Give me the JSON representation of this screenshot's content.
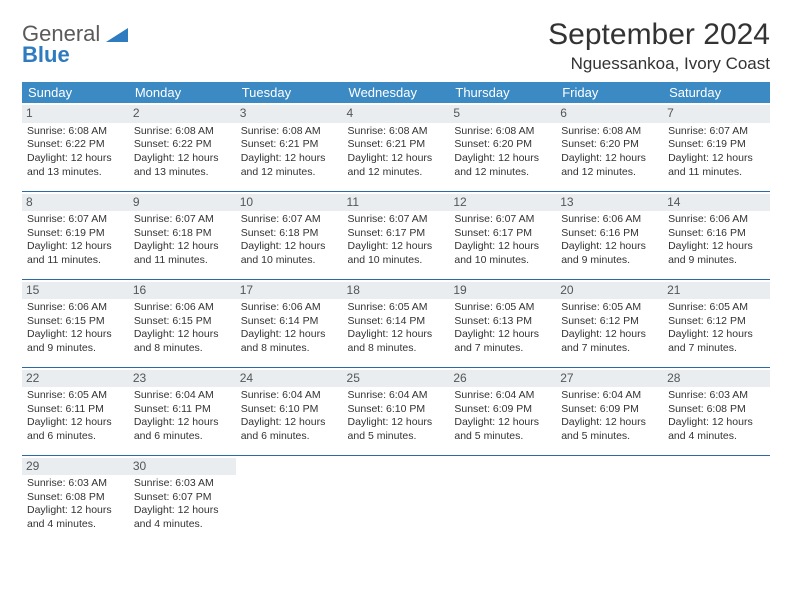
{
  "brand": {
    "line1": "General",
    "line2": "Blue"
  },
  "title": "September 2024",
  "location": "Nguessankoa, Ivory Coast",
  "day_headers": [
    "Sunday",
    "Monday",
    "Tuesday",
    "Wednesday",
    "Thursday",
    "Friday",
    "Saturday"
  ],
  "colors": {
    "header_bg": "#3b8ac4",
    "header_text": "#ffffff",
    "daynum_bg": "#e9edf0",
    "row_border": "#2d6aa3",
    "brand_gray": "#5a5a5a",
    "brand_blue": "#2f7bbf"
  },
  "weeks": [
    [
      {
        "n": "1",
        "sr": "Sunrise: 6:08 AM",
        "ss": "Sunset: 6:22 PM",
        "dl": "Daylight: 12 hours and 13 minutes."
      },
      {
        "n": "2",
        "sr": "Sunrise: 6:08 AM",
        "ss": "Sunset: 6:22 PM",
        "dl": "Daylight: 12 hours and 13 minutes."
      },
      {
        "n": "3",
        "sr": "Sunrise: 6:08 AM",
        "ss": "Sunset: 6:21 PM",
        "dl": "Daylight: 12 hours and 12 minutes."
      },
      {
        "n": "4",
        "sr": "Sunrise: 6:08 AM",
        "ss": "Sunset: 6:21 PM",
        "dl": "Daylight: 12 hours and 12 minutes."
      },
      {
        "n": "5",
        "sr": "Sunrise: 6:08 AM",
        "ss": "Sunset: 6:20 PM",
        "dl": "Daylight: 12 hours and 12 minutes."
      },
      {
        "n": "6",
        "sr": "Sunrise: 6:08 AM",
        "ss": "Sunset: 6:20 PM",
        "dl": "Daylight: 12 hours and 12 minutes."
      },
      {
        "n": "7",
        "sr": "Sunrise: 6:07 AM",
        "ss": "Sunset: 6:19 PM",
        "dl": "Daylight: 12 hours and 11 minutes."
      }
    ],
    [
      {
        "n": "8",
        "sr": "Sunrise: 6:07 AM",
        "ss": "Sunset: 6:19 PM",
        "dl": "Daylight: 12 hours and 11 minutes."
      },
      {
        "n": "9",
        "sr": "Sunrise: 6:07 AM",
        "ss": "Sunset: 6:18 PM",
        "dl": "Daylight: 12 hours and 11 minutes."
      },
      {
        "n": "10",
        "sr": "Sunrise: 6:07 AM",
        "ss": "Sunset: 6:18 PM",
        "dl": "Daylight: 12 hours and 10 minutes."
      },
      {
        "n": "11",
        "sr": "Sunrise: 6:07 AM",
        "ss": "Sunset: 6:17 PM",
        "dl": "Daylight: 12 hours and 10 minutes."
      },
      {
        "n": "12",
        "sr": "Sunrise: 6:07 AM",
        "ss": "Sunset: 6:17 PM",
        "dl": "Daylight: 12 hours and 10 minutes."
      },
      {
        "n": "13",
        "sr": "Sunrise: 6:06 AM",
        "ss": "Sunset: 6:16 PM",
        "dl": "Daylight: 12 hours and 9 minutes."
      },
      {
        "n": "14",
        "sr": "Sunrise: 6:06 AM",
        "ss": "Sunset: 6:16 PM",
        "dl": "Daylight: 12 hours and 9 minutes."
      }
    ],
    [
      {
        "n": "15",
        "sr": "Sunrise: 6:06 AM",
        "ss": "Sunset: 6:15 PM",
        "dl": "Daylight: 12 hours and 9 minutes."
      },
      {
        "n": "16",
        "sr": "Sunrise: 6:06 AM",
        "ss": "Sunset: 6:15 PM",
        "dl": "Daylight: 12 hours and 8 minutes."
      },
      {
        "n": "17",
        "sr": "Sunrise: 6:06 AM",
        "ss": "Sunset: 6:14 PM",
        "dl": "Daylight: 12 hours and 8 minutes."
      },
      {
        "n": "18",
        "sr": "Sunrise: 6:05 AM",
        "ss": "Sunset: 6:14 PM",
        "dl": "Daylight: 12 hours and 8 minutes."
      },
      {
        "n": "19",
        "sr": "Sunrise: 6:05 AM",
        "ss": "Sunset: 6:13 PM",
        "dl": "Daylight: 12 hours and 7 minutes."
      },
      {
        "n": "20",
        "sr": "Sunrise: 6:05 AM",
        "ss": "Sunset: 6:12 PM",
        "dl": "Daylight: 12 hours and 7 minutes."
      },
      {
        "n": "21",
        "sr": "Sunrise: 6:05 AM",
        "ss": "Sunset: 6:12 PM",
        "dl": "Daylight: 12 hours and 7 minutes."
      }
    ],
    [
      {
        "n": "22",
        "sr": "Sunrise: 6:05 AM",
        "ss": "Sunset: 6:11 PM",
        "dl": "Daylight: 12 hours and 6 minutes."
      },
      {
        "n": "23",
        "sr": "Sunrise: 6:04 AM",
        "ss": "Sunset: 6:11 PM",
        "dl": "Daylight: 12 hours and 6 minutes."
      },
      {
        "n": "24",
        "sr": "Sunrise: 6:04 AM",
        "ss": "Sunset: 6:10 PM",
        "dl": "Daylight: 12 hours and 6 minutes."
      },
      {
        "n": "25",
        "sr": "Sunrise: 6:04 AM",
        "ss": "Sunset: 6:10 PM",
        "dl": "Daylight: 12 hours and 5 minutes."
      },
      {
        "n": "26",
        "sr": "Sunrise: 6:04 AM",
        "ss": "Sunset: 6:09 PM",
        "dl": "Daylight: 12 hours and 5 minutes."
      },
      {
        "n": "27",
        "sr": "Sunrise: 6:04 AM",
        "ss": "Sunset: 6:09 PM",
        "dl": "Daylight: 12 hours and 5 minutes."
      },
      {
        "n": "28",
        "sr": "Sunrise: 6:03 AM",
        "ss": "Sunset: 6:08 PM",
        "dl": "Daylight: 12 hours and 4 minutes."
      }
    ],
    [
      {
        "n": "29",
        "sr": "Sunrise: 6:03 AM",
        "ss": "Sunset: 6:08 PM",
        "dl": "Daylight: 12 hours and 4 minutes."
      },
      {
        "n": "30",
        "sr": "Sunrise: 6:03 AM",
        "ss": "Sunset: 6:07 PM",
        "dl": "Daylight: 12 hours and 4 minutes."
      },
      null,
      null,
      null,
      null,
      null
    ]
  ]
}
